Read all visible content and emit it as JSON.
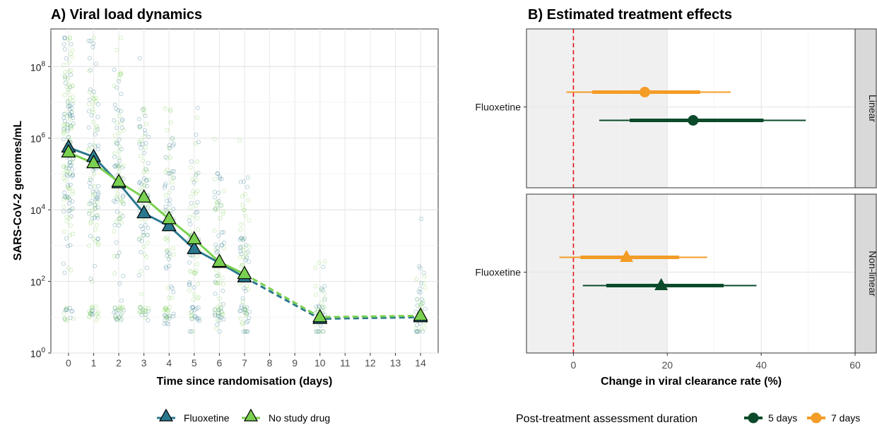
{
  "chart_data": [
    {
      "type": "line",
      "title": "A) Viral load dynamics",
      "xlabel": "Time since randomisation (days)",
      "ylabel": "SARS-CoV-2 genomes/mL",
      "y_scale": "log10",
      "ylim": [
        1,
        1000000000
      ],
      "xlim": [
        -0.7,
        14.7
      ],
      "x_ticks": [
        "0",
        "1",
        "2",
        "3",
        "4",
        "5",
        "6",
        "7",
        "8",
        "9",
        "10",
        "11",
        "12",
        "13",
        "14"
      ],
      "y_ticks": [
        {
          "base": "10",
          "exp": "0",
          "value": 1
        },
        {
          "base": "10",
          "exp": "2",
          "value": 100
        },
        {
          "base": "10",
          "exp": "4",
          "value": 10000
        },
        {
          "base": "10",
          "exp": "6",
          "value": 1000000
        },
        {
          "base": "10",
          "exp": "8",
          "value": 100000000
        }
      ],
      "grid": true,
      "legend_position": "bottom",
      "series": [
        {
          "name": "Fluoxetine",
          "color": "#2a788e",
          "marker": "triangle",
          "x": [
            0,
            1,
            2,
            3,
            4,
            5,
            6,
            7,
            10,
            14
          ],
          "y": [
            550000,
            300000,
            55000,
            8000,
            3500,
            800,
            330,
            130,
            9,
            10
          ],
          "solid_until_x": 7,
          "dashed_from_x": 7
        },
        {
          "name": "No study drug",
          "color": "#7ad151",
          "marker": "triangle",
          "x": [
            0,
            1,
            2,
            3,
            4,
            5,
            6,
            7,
            10,
            14
          ],
          "y": [
            400000,
            200000,
            60000,
            22000,
            5500,
            1500,
            350,
            160,
            10,
            11
          ],
          "solid_until_x": 7,
          "dashed_from_x": 7
        }
      ],
      "raw_points": {
        "description_of_days_with_samples": [
          0,
          1,
          2,
          3,
          4,
          5,
          6,
          7,
          10,
          14
        ],
        "colors": [
          "#2a788e",
          "#7ad151"
        ]
      }
    },
    {
      "type": "scatter",
      "title": "B) Estimated treatment effects",
      "xlabel": "Change in viral clearance rate (%)",
      "xlim": [
        -10,
        60
      ],
      "x_ticks": [
        "0",
        "20",
        "40",
        "60"
      ],
      "reference_line": 0,
      "shaded_region": [
        -10,
        20
      ],
      "legend_title": "Post-treatment assessment duration",
      "legend_position": "bottom",
      "panels": [
        {
          "strip": "Linear",
          "category": "Fluoxetine",
          "marker": "circle",
          "estimates": [
            {
              "series": "5 days",
              "color": "#0b4a2a",
              "estimate": 25.5,
              "ci80": [
                12,
                40.5
              ],
              "ci95": [
                5.5,
                49.5
              ]
            },
            {
              "series": "7 days",
              "color": "#f39c26",
              "estimate": 15.2,
              "ci80": [
                4,
                27
              ],
              "ci95": [
                -1.5,
                33.5
              ]
            }
          ]
        },
        {
          "strip": "Non-linear",
          "category": "Fluoxetine",
          "marker": "triangle",
          "estimates": [
            {
              "series": "5 days",
              "color": "#0b4a2a",
              "estimate": 18.7,
              "ci80": [
                7,
                32
              ],
              "ci95": [
                2,
                39
              ]
            },
            {
              "series": "7 days",
              "color": "#f39c26",
              "estimate": 11.3,
              "ci80": [
                1.5,
                22.5
              ],
              "ci95": [
                -3,
                28.5
              ]
            }
          ]
        }
      ],
      "legend": [
        {
          "name": "5 days",
          "color": "#0b4a2a"
        },
        {
          "name": "7 days",
          "color": "#f39c26"
        }
      ]
    }
  ]
}
